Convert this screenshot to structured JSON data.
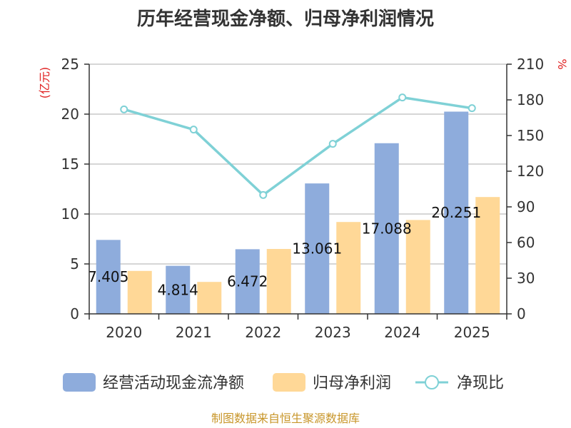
{
  "chart_data": {
    "type": "bar",
    "title": "历年经营现金净额、归母净利润情况",
    "left_unit": "(亿元)",
    "right_unit": "%",
    "categories": [
      "2020",
      "2021",
      "2022",
      "2023",
      "2024",
      "2025"
    ],
    "left_axis": {
      "min": 0,
      "max": 25,
      "ticks": [
        "0",
        "5",
        "10",
        "15",
        "20",
        "25"
      ]
    },
    "right_axis": {
      "min": 0,
      "max": 210,
      "ticks": [
        "0",
        "30",
        "60",
        "90",
        "120",
        "150",
        "180",
        "210"
      ]
    },
    "series": [
      {
        "name": "经营活动现金流净额",
        "type": "bar",
        "axis": "left",
        "color": "#8eacdc",
        "values": [
          7.405,
          4.814,
          6.472,
          13.061,
          17.088,
          20.251
        ],
        "labels": [
          "7.405",
          "4.814",
          "6.472",
          "13.061",
          "17.088",
          "20.251"
        ]
      },
      {
        "name": "归母净利润",
        "type": "bar",
        "axis": "left",
        "color": "#ffd897",
        "values": [
          4.3,
          3.2,
          6.5,
          9.2,
          9.4,
          11.7
        ]
      },
      {
        "name": "净现比",
        "type": "line",
        "axis": "right",
        "color": "#7fd1d6",
        "values": [
          172,
          155,
          100,
          143,
          182,
          173
        ]
      }
    ],
    "grid": true,
    "legend_position": "bottom"
  },
  "source": "制图数据来自恒生聚源数据库"
}
